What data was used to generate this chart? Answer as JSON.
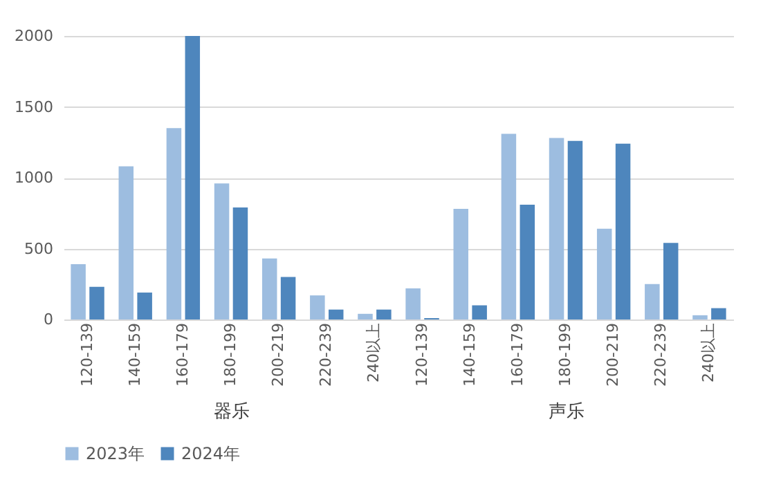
{
  "chart_data": [
    {
      "type": "bar",
      "xlabel": "器乐",
      "categories": [
        "120-139",
        "140-159",
        "160-179",
        "180-199",
        "200-219",
        "220-239",
        "240以上"
      ],
      "series": [
        {
          "name": "2023年",
          "color": "#9dbde0",
          "values": [
            390,
            1080,
            1350,
            960,
            430,
            170,
            40
          ]
        },
        {
          "name": "2024年",
          "color": "#4e86bd",
          "values": [
            230,
            190,
            2000,
            790,
            300,
            70,
            70
          ]
        }
      ],
      "ylim": [
        0,
        2000
      ],
      "yticks": [
        0,
        500,
        1000,
        1500,
        2000
      ],
      "grid": "y",
      "legend": "bottom"
    },
    {
      "type": "bar",
      "xlabel": "声乐",
      "categories": [
        "120-139",
        "140-159",
        "160-179",
        "180-199",
        "200-219",
        "220-239",
        "240以上"
      ],
      "series": [
        {
          "name": "2023年",
          "color": "#9dbde0",
          "values": [
            220,
            780,
            1310,
            1280,
            640,
            250,
            30
          ]
        },
        {
          "name": "2024年",
          "color": "#4e86bd",
          "values": [
            10,
            100,
            810,
            1260,
            1240,
            540,
            80
          ]
        }
      ],
      "ylim": [
        0,
        2000
      ],
      "yticks": [
        0,
        500,
        1000,
        1500,
        2000
      ],
      "grid": "y",
      "legend": "bottom",
      "tick_labels": "x"
    }
  ]
}
